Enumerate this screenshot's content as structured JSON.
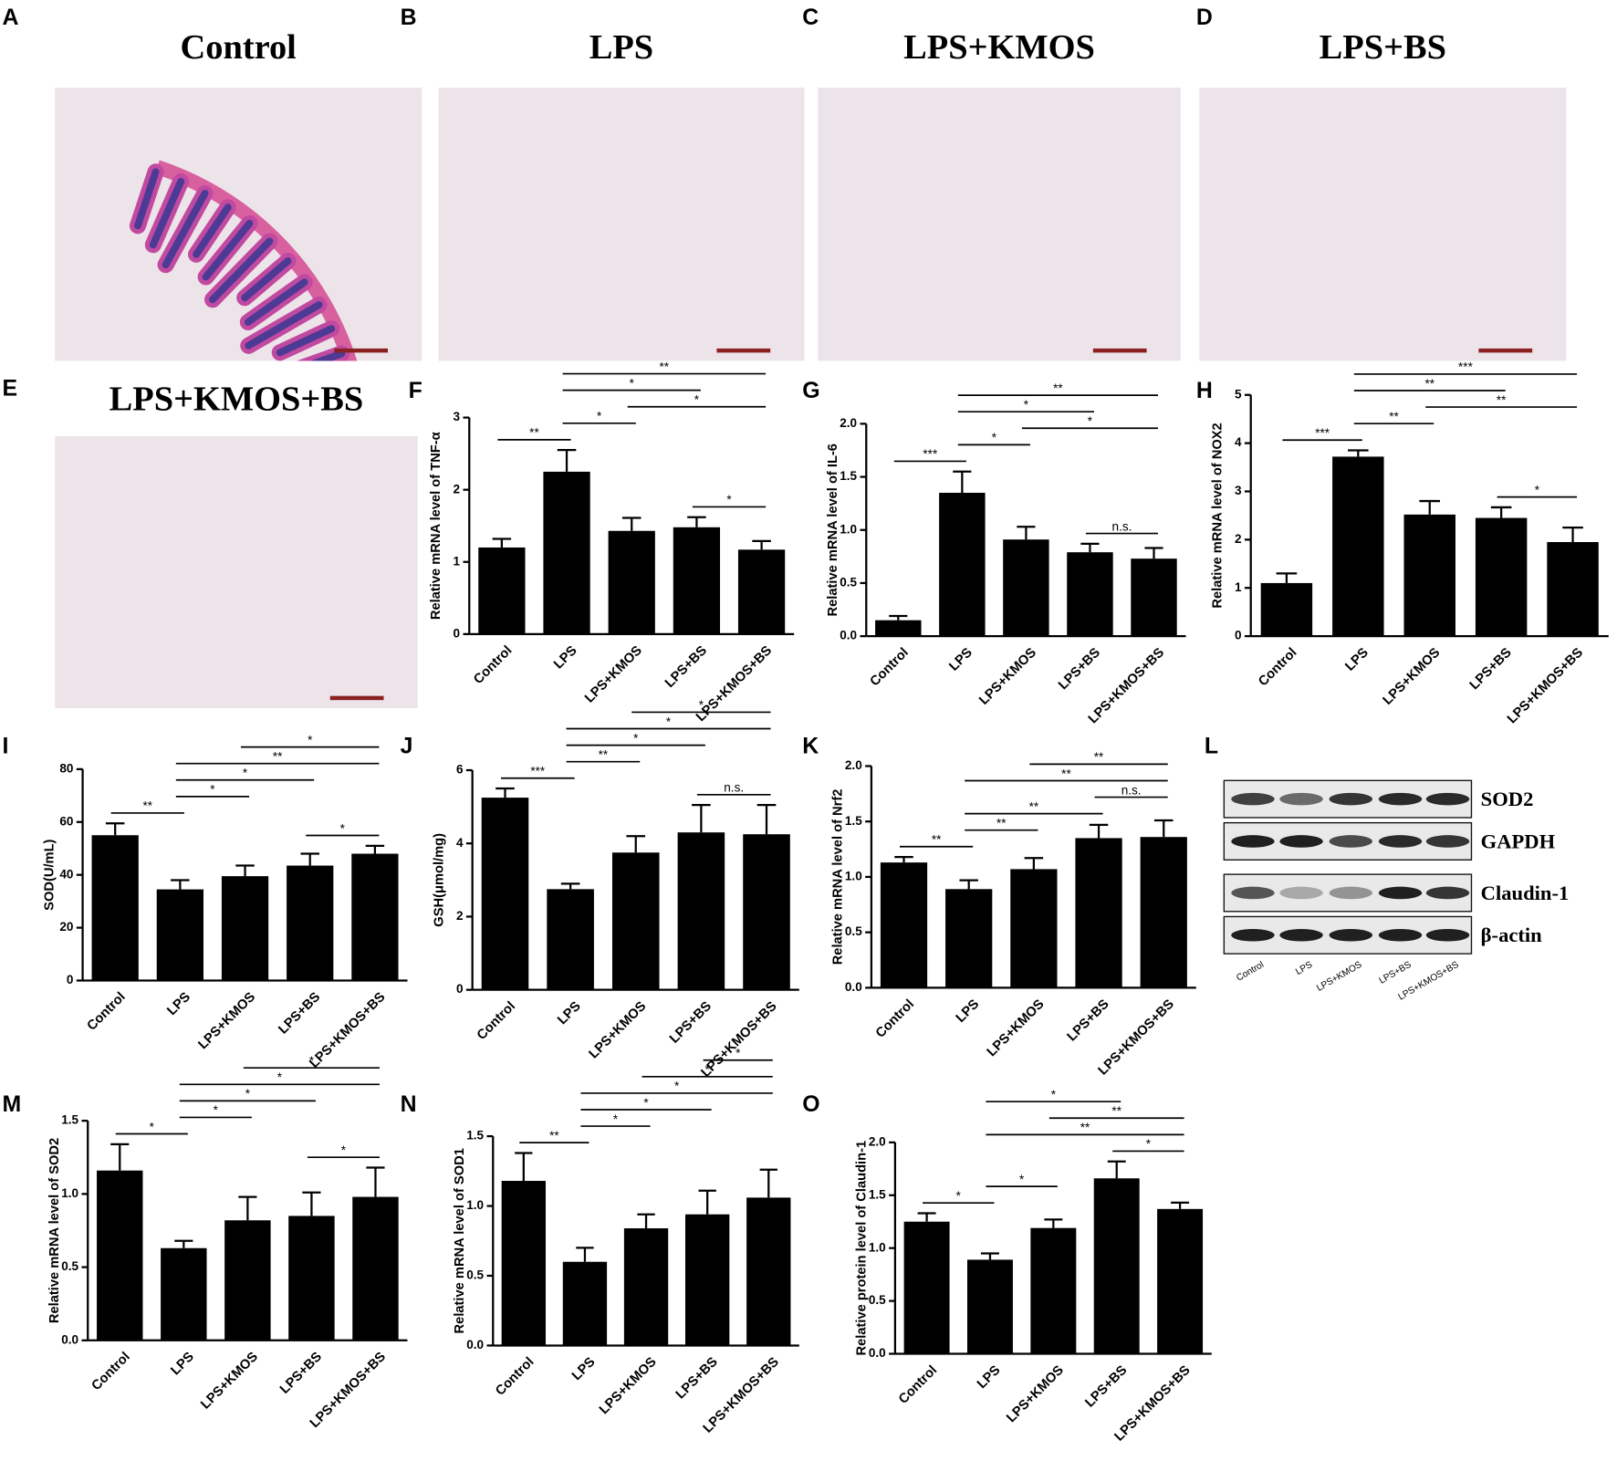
{
  "images": [
    {
      "letter": "A",
      "title": "Control"
    },
    {
      "letter": "B",
      "title": "LPS"
    },
    {
      "letter": "C",
      "title": "LPS+KMOS"
    },
    {
      "letter": "D",
      "title": "LPS+BS"
    },
    {
      "letter": "E",
      "title": "LPS+KMOS+BS"
    }
  ],
  "blot": {
    "letter": "L",
    "rows": [
      "SOD2",
      "GAPDH",
      "Claudin-1",
      "β-actin"
    ],
    "lanes": [
      "Control",
      "LPS",
      "LPS+KMOS",
      "LPS+BS",
      "LPS+KMOS+BS"
    ]
  },
  "chart_data": [
    {
      "letter": "F",
      "type": "bar",
      "ylabel": "Relative mRNA level of TNF-α",
      "categories": [
        "Control",
        "LPS",
        "LPS+KMOS",
        "LPS+BS",
        "LPS+KMOS+BS"
      ],
      "values": [
        1.2,
        2.25,
        1.43,
        1.48,
        1.17
      ],
      "errors": [
        0.12,
        0.3,
        0.18,
        0.14,
        0.12
      ],
      "color": "#000000",
      "ylim": [
        0,
        3
      ],
      "yticks": [
        0,
        1,
        2,
        3
      ],
      "brackets": [
        {
          "pair": [
            "Control",
            "LPS"
          ],
          "label": "**"
        },
        {
          "pair": [
            "LPS",
            "LPS+KMOS"
          ],
          "label": "*"
        },
        {
          "pair": [
            "LPS+BS",
            "LPS+KMOS+BS"
          ],
          "label": "*"
        },
        {
          "pair": [
            "LPS+KMOS",
            "LPS+KMOS+BS"
          ],
          "label": "*"
        },
        {
          "pair": [
            "LPS",
            "LPS+BS"
          ],
          "label": "*"
        },
        {
          "pair": [
            "LPS",
            "LPS+KMOS+BS"
          ],
          "label": "**"
        }
      ]
    },
    {
      "letter": "G",
      "type": "bar",
      "ylabel": "Relative mRNA level of IL-6",
      "categories": [
        "Control",
        "LPS",
        "LPS+KMOS",
        "LPS+BS",
        "LPS+KMOS+BS"
      ],
      "values": [
        0.15,
        1.35,
        0.91,
        0.79,
        0.73
      ],
      "errors": [
        0.04,
        0.2,
        0.12,
        0.08,
        0.1
      ],
      "color": "#000000",
      "ylim": [
        0,
        2
      ],
      "yticks": [
        {
          "value": 0,
          "label": "0.0"
        },
        0.5,
        {
          "value": 1,
          "label": "1.0"
        },
        1.5,
        {
          "value": 2,
          "label": "2.0"
        }
      ],
      "brackets": [
        {
          "pair": [
            "Control",
            "LPS"
          ],
          "label": "***"
        },
        {
          "pair": [
            "LPS",
            "LPS+KMOS"
          ],
          "label": "*"
        },
        {
          "pair": [
            "LPS+BS",
            "LPS+KMOS+BS"
          ],
          "label": "n.s."
        },
        {
          "pair": [
            "LPS+KMOS",
            "LPS+KMOS+BS"
          ],
          "label": "*"
        },
        {
          "pair": [
            "LPS",
            "LPS+BS"
          ],
          "label": "*"
        },
        {
          "pair": [
            "LPS",
            "LPS+KMOS+BS"
          ],
          "label": "**"
        }
      ]
    },
    {
      "letter": "H",
      "type": "bar",
      "ylabel": "Relative mRNA level of NOX2",
      "categories": [
        "Control",
        "LPS",
        "LPS+KMOS",
        "LPS+BS",
        "LPS+KMOS+BS"
      ],
      "values": [
        1.1,
        3.72,
        2.52,
        2.45,
        1.95
      ],
      "errors": [
        0.2,
        0.13,
        0.28,
        0.22,
        0.3
      ],
      "color": "#000000",
      "ylim": [
        0,
        5
      ],
      "yticks": [
        0,
        1,
        2,
        3,
        4,
        5
      ],
      "brackets": [
        {
          "pair": [
            "Control",
            "LPS"
          ],
          "label": "***"
        },
        {
          "pair": [
            "LPS",
            "LPS+KMOS"
          ],
          "label": "**"
        },
        {
          "pair": [
            "LPS+BS",
            "LPS+KMOS+BS"
          ],
          "label": "*"
        },
        {
          "pair": [
            "LPS+KMOS",
            "LPS+KMOS+BS"
          ],
          "label": "**"
        },
        {
          "pair": [
            "LPS",
            "LPS+BS"
          ],
          "label": "**"
        },
        {
          "pair": [
            "LPS",
            "LPS+KMOS+BS"
          ],
          "label": "***"
        }
      ]
    },
    {
      "letter": "I",
      "type": "bar",
      "ylabel": "SOD(U/mL)",
      "categories": [
        "Control",
        "LPS",
        "LPS+KMOS",
        "LPS+BS",
        "LPS+KMOS+BS"
      ],
      "values": [
        55,
        34.5,
        39.5,
        43.5,
        48
      ],
      "errors": [
        4.5,
        3.5,
        4,
        4.5,
        3
      ],
      "color": "#000000",
      "ylim": [
        0,
        80
      ],
      "yticks": [
        0,
        20,
        40,
        60,
        80
      ],
      "brackets": [
        {
          "pair": [
            "Control",
            "LPS"
          ],
          "label": "**"
        },
        {
          "pair": [
            "LPS",
            "LPS+KMOS"
          ],
          "label": "*"
        },
        {
          "pair": [
            "LPS+BS",
            "LPS+KMOS+BS"
          ],
          "label": "*"
        },
        {
          "pair": [
            "LPS",
            "LPS+BS"
          ],
          "label": "*"
        },
        {
          "pair": [
            "LPS",
            "LPS+KMOS+BS"
          ],
          "label": "**"
        },
        {
          "pair": [
            "LPS+KMOS",
            "LPS+KMOS+BS"
          ],
          "label": "*"
        }
      ]
    },
    {
      "letter": "J",
      "type": "bar",
      "ylabel": "GSH(μmol/mg)",
      "categories": [
        "Control",
        "LPS",
        "LPS+KMOS",
        "LPS+BS",
        "LPS+KMOS+BS"
      ],
      "values": [
        5.25,
        2.75,
        3.75,
        4.3,
        4.25
      ],
      "errors": [
        0.25,
        0.15,
        0.45,
        0.75,
        0.8
      ],
      "color": "#000000",
      "ylim": [
        0,
        6
      ],
      "yticks": [
        0,
        2,
        4,
        6
      ],
      "brackets": [
        {
          "pair": [
            "Control",
            "LPS"
          ],
          "label": "***"
        },
        {
          "pair": [
            "LPS",
            "LPS+KMOS"
          ],
          "label": "**"
        },
        {
          "pair": [
            "LPS+BS",
            "LPS+KMOS+BS"
          ],
          "label": "n.s."
        },
        {
          "pair": [
            "LPS",
            "LPS+BS"
          ],
          "label": "*"
        },
        {
          "pair": [
            "LPS",
            "LPS+KMOS+BS"
          ],
          "label": "*"
        },
        {
          "pair": [
            "LPS+KMOS",
            "LPS+KMOS+BS"
          ],
          "label": "*"
        }
      ]
    },
    {
      "letter": "K",
      "type": "bar",
      "ylabel": "Relative mRNA level of Nrf2",
      "categories": [
        "Control",
        "LPS",
        "LPS+KMOS",
        "LPS+BS",
        "LPS+KMOS+BS"
      ],
      "values": [
        1.13,
        0.89,
        1.07,
        1.35,
        1.36
      ],
      "errors": [
        0.05,
        0.08,
        0.1,
        0.12,
        0.15
      ],
      "color": "#000000",
      "ylim": [
        0,
        2
      ],
      "yticks": [
        {
          "value": 0,
          "label": "0.0"
        },
        0.5,
        {
          "value": 1,
          "label": "1.0"
        },
        1.5,
        {
          "value": 2,
          "label": "2.0"
        }
      ],
      "brackets": [
        {
          "pair": [
            "Control",
            "LPS"
          ],
          "label": "**"
        },
        {
          "pair": [
            "LPS",
            "LPS+KMOS"
          ],
          "label": "**"
        },
        {
          "pair": [
            "LPS",
            "LPS+BS"
          ],
          "label": "**"
        },
        {
          "pair": [
            "LPS+BS",
            "LPS+KMOS+BS"
          ],
          "label": "n.s."
        },
        {
          "pair": [
            "LPS",
            "LPS+KMOS+BS"
          ],
          "label": "**"
        },
        {
          "pair": [
            "LPS+KMOS",
            "LPS+KMOS+BS"
          ],
          "label": "**"
        }
      ]
    },
    {
      "letter": "M",
      "type": "bar",
      "ylabel": "Relative mRNA level of SOD2",
      "categories": [
        "Control",
        "LPS",
        "LPS+KMOS",
        "LPS+BS",
        "LPS+KMOS+BS"
      ],
      "values": [
        1.16,
        0.63,
        0.82,
        0.85,
        0.98
      ],
      "errors": [
        0.18,
        0.05,
        0.16,
        0.16,
        0.2
      ],
      "color": "#000000",
      "ylim": [
        0,
        1.5
      ],
      "yticks": [
        {
          "value": 0,
          "label": "0.0"
        },
        0.5,
        {
          "value": 1,
          "label": "1.0"
        },
        1.5
      ],
      "brackets": [
        {
          "pair": [
            "Control",
            "LPS"
          ],
          "label": "*"
        },
        {
          "pair": [
            "LPS",
            "LPS+KMOS"
          ],
          "label": "*"
        },
        {
          "pair": [
            "LPS+BS",
            "LPS+KMOS+BS"
          ],
          "label": "*"
        },
        {
          "pair": [
            "LPS",
            "LPS+BS"
          ],
          "label": "*"
        },
        {
          "pair": [
            "LPS",
            "LPS+KMOS+BS"
          ],
          "label": "*"
        },
        {
          "pair": [
            "LPS+KMOS",
            "LPS+KMOS+BS"
          ],
          "label": "*"
        }
      ]
    },
    {
      "letter": "N",
      "type": "bar",
      "ylabel": "Relative mRNA level of SOD1",
      "categories": [
        "Control",
        "LPS",
        "LPS+KMOS",
        "LPS+BS",
        "LPS+KMOS+BS"
      ],
      "values": [
        1.18,
        0.6,
        0.84,
        0.94,
        1.06
      ],
      "errors": [
        0.2,
        0.1,
        0.1,
        0.17,
        0.2
      ],
      "color": "#000000",
      "ylim": [
        0,
        1.5
      ],
      "yticks": [
        {
          "value": 0,
          "label": "0.0"
        },
        0.5,
        {
          "value": 1,
          "label": "1.0"
        },
        1.5
      ],
      "brackets": [
        {
          "pair": [
            "Control",
            "LPS"
          ],
          "label": "**"
        },
        {
          "pair": [
            "LPS",
            "LPS+KMOS"
          ],
          "label": "*"
        },
        {
          "pair": [
            "LPS",
            "LPS+BS"
          ],
          "label": "*"
        },
        {
          "pair": [
            "LPS",
            "LPS+KMOS+BS"
          ],
          "label": "*"
        },
        {
          "pair": [
            "LPS+KMOS",
            "LPS+KMOS+BS"
          ],
          "label": "*"
        },
        {
          "pair": [
            "LPS+BS",
            "LPS+KMOS+BS"
          ],
          "label": "*"
        }
      ]
    },
    {
      "letter": "O",
      "type": "bar",
      "ylabel": "Relative protein level of Claudin-1",
      "categories": [
        "Control",
        "LPS",
        "LPS+KMOS",
        "LPS+BS",
        "LPS+KMOS+BS"
      ],
      "values": [
        1.25,
        0.89,
        1.19,
        1.66,
        1.37
      ],
      "errors": [
        0.08,
        0.06,
        0.08,
        0.16,
        0.06
      ],
      "color": "#000000",
      "ylim": [
        0,
        2
      ],
      "yticks": [
        {
          "value": 0,
          "label": "0.0"
        },
        0.5,
        {
          "value": 1,
          "label": "1.0"
        },
        1.5,
        {
          "value": 2,
          "label": "2.0"
        }
      ],
      "brackets": [
        {
          "pair": [
            "Control",
            "LPS"
          ],
          "label": "*"
        },
        {
          "pair": [
            "LPS",
            "LPS+KMOS"
          ],
          "label": "*"
        },
        {
          "pair": [
            "LPS+BS",
            "LPS+KMOS+BS"
          ],
          "label": "*"
        },
        {
          "pair": [
            "LPS",
            "LPS+KMOS+BS"
          ],
          "label": "**"
        },
        {
          "pair": [
            "LPS+KMOS",
            "LPS+KMOS+BS"
          ],
          "label": "**"
        },
        {
          "pair": [
            "LPS",
            "LPS+BS"
          ],
          "label": "*"
        }
      ]
    }
  ]
}
